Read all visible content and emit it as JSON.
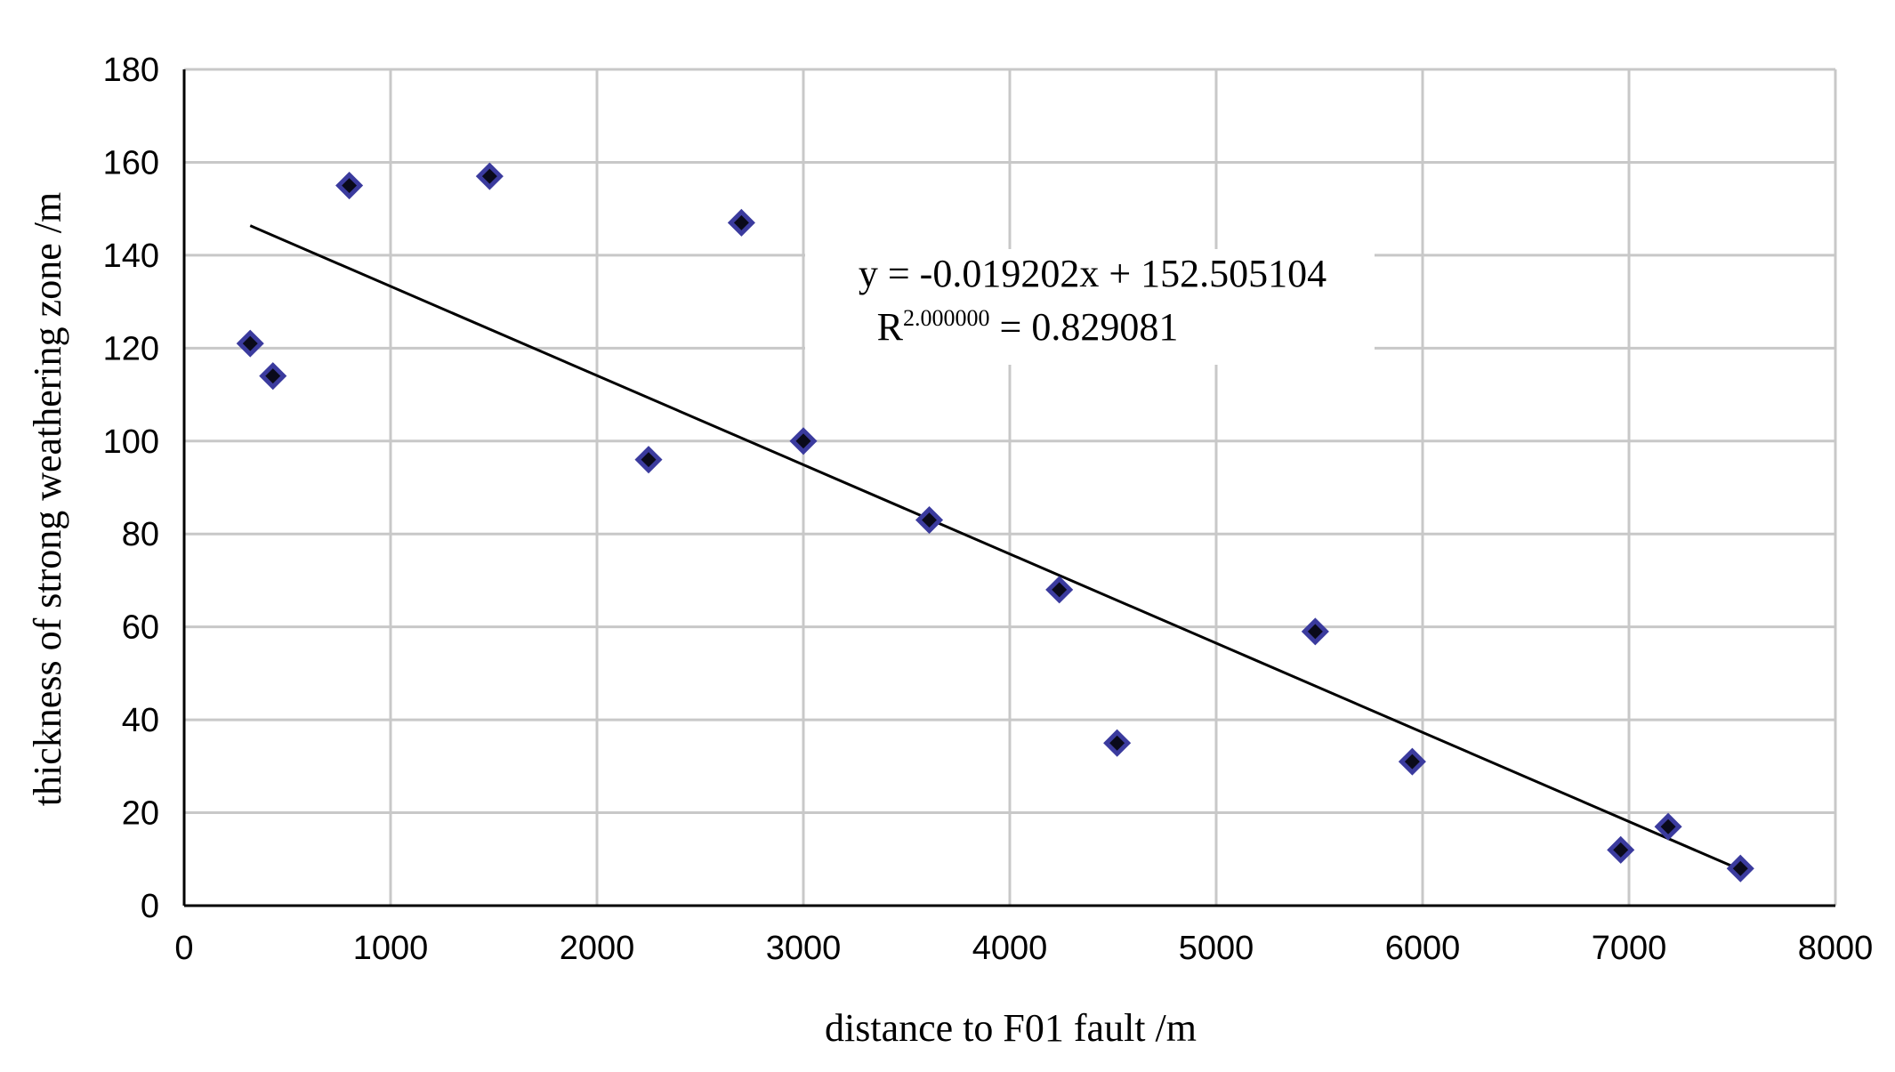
{
  "chart_data": {
    "type": "scatter",
    "xlabel": "distance to F01 fault  /m",
    "ylabel": "thickness of strong weathering zone /m",
    "xlim": [
      0,
      8000
    ],
    "ylim": [
      0,
      180
    ],
    "x_ticks": [
      0,
      1000,
      2000,
      3000,
      4000,
      5000,
      6000,
      7000,
      8000
    ],
    "y_ticks": [
      0,
      20,
      40,
      60,
      80,
      100,
      120,
      140,
      160,
      180
    ],
    "grid": true,
    "series": [
      {
        "points": [
          {
            "x": 320,
            "y": 121
          },
          {
            "x": 430,
            "y": 114
          },
          {
            "x": 800,
            "y": 155
          },
          {
            "x": 1480,
            "y": 157
          },
          {
            "x": 2250,
            "y": 96
          },
          {
            "x": 2700,
            "y": 147
          },
          {
            "x": 3000,
            "y": 100
          },
          {
            "x": 3610,
            "y": 83
          },
          {
            "x": 4240,
            "y": 68
          },
          {
            "x": 4520,
            "y": 35
          },
          {
            "x": 5480,
            "y": 59
          },
          {
            "x": 5950,
            "y": 31
          },
          {
            "x": 6960,
            "y": 12
          },
          {
            "x": 7190,
            "y": 17
          },
          {
            "x": 7540,
            "y": 8
          }
        ],
        "marker": "diamond",
        "fill_color": "#0a0a1a",
        "edge_color": "#3b3b9e"
      }
    ],
    "trendline": {
      "slope": -0.019202,
      "intercept": 152.505104,
      "x_range": [
        320,
        7540
      ],
      "color": "#000000"
    },
    "annotation": {
      "equation": "y = -0.019202x + 152.505104",
      "r2_base": "R",
      "r2_superscript": "2.000000",
      "r2_rest": " = 0.829081"
    }
  }
}
